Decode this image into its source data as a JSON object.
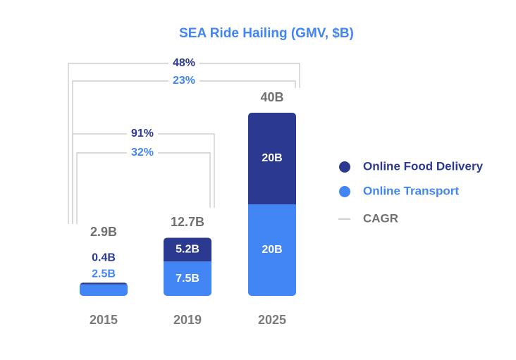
{
  "chart_data": {
    "type": "stacked-bar",
    "title": "SEA Ride Hailing (GMV, $B)",
    "categories": [
      "2015",
      "2019",
      "2025"
    ],
    "series": [
      {
        "name": "Online Transport",
        "color": "#4285f4",
        "values": [
          2.5,
          7.5,
          20
        ],
        "value_labels": [
          "2.5B",
          "7.5B",
          "20B"
        ]
      },
      {
        "name": "Online Food Delivery",
        "color": "#2b3990",
        "values": [
          0.4,
          5.2,
          20
        ],
        "value_labels": [
          "0.4B",
          "5.2B",
          "20B"
        ]
      }
    ],
    "totals": {
      "values": [
        2.9,
        12.7,
        40
      ],
      "value_labels": [
        "2.9B",
        "12.7B",
        "40B"
      ]
    },
    "ylim": [
      0,
      40
    ],
    "cagr_label": "CAGR",
    "cagr": [
      {
        "values": [
          91,
          32
        ],
        "value_labels": [
          "91%",
          "32%"
        ]
      },
      {
        "values": [
          48,
          23
        ],
        "value_labels": [
          "48%",
          "23%"
        ]
      }
    ]
  }
}
